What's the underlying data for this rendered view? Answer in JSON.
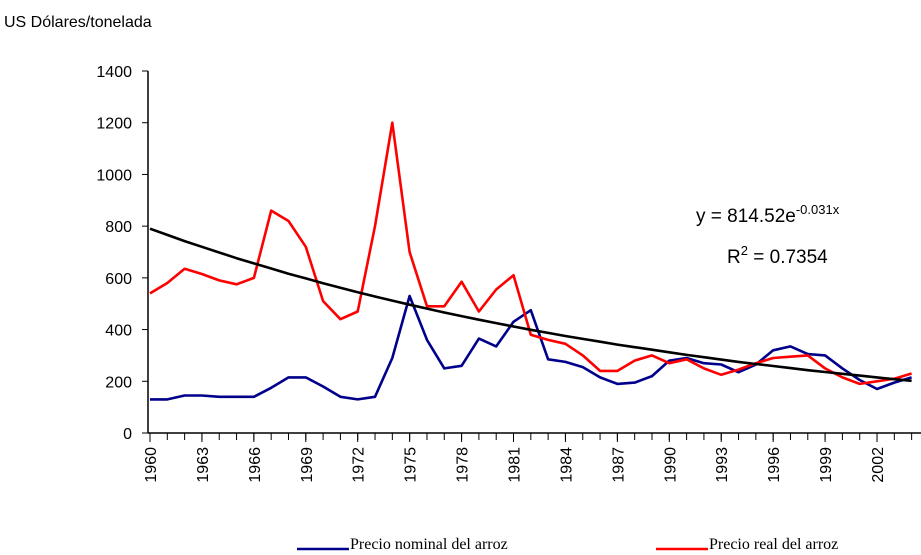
{
  "chart_data": {
    "type": "line",
    "y_axis_label": "US Dólares/tonelada",
    "x": [
      1960,
      1961,
      1962,
      1963,
      1964,
      1965,
      1966,
      1967,
      1968,
      1969,
      1970,
      1971,
      1972,
      1973,
      1974,
      1975,
      1976,
      1977,
      1978,
      1979,
      1980,
      1981,
      1982,
      1983,
      1984,
      1985,
      1986,
      1987,
      1988,
      1989,
      1990,
      1991,
      1992,
      1993,
      1994,
      1995,
      1996,
      1997,
      1998,
      1999,
      2000,
      2001,
      2002,
      2003,
      2004
    ],
    "xlim": [
      1960,
      2004.5
    ],
    "xticks": [
      1960,
      1963,
      1966,
      1969,
      1972,
      1975,
      1978,
      1981,
      1984,
      1987,
      1990,
      1993,
      1996,
      1999,
      2002
    ],
    "ylim": [
      0,
      1400
    ],
    "yticks": [
      0,
      200,
      400,
      600,
      800,
      1000,
      1200,
      1400
    ],
    "legend": "bottom",
    "series": [
      {
        "name": "Precio nominal del arroz",
        "color": "#00008b",
        "values": [
          130,
          130,
          145,
          145,
          140,
          140,
          140,
          175,
          215,
          215,
          180,
          140,
          130,
          140,
          290,
          530,
          360,
          250,
          260,
          365,
          335,
          430,
          475,
          285,
          275,
          255,
          215,
          190,
          195,
          220,
          280,
          290,
          270,
          265,
          235,
          265,
          320,
          335,
          305,
          300,
          250,
          205,
          170,
          195,
          215
        ]
      },
      {
        "name": "Precio real del arroz",
        "color": "#ff0000",
        "values": [
          540,
          580,
          635,
          615,
          590,
          575,
          600,
          860,
          820,
          720,
          510,
          440,
          470,
          800,
          1200,
          700,
          490,
          490,
          585,
          470,
          555,
          610,
          380,
          360,
          345,
          300,
          240,
          240,
          280,
          300,
          270,
          285,
          250,
          225,
          245,
          270,
          290,
          295,
          300,
          250,
          215,
          190,
          200,
          210,
          230
        ]
      }
    ],
    "trendline": {
      "color": "#000000",
      "values": [
        790,
        766,
        742,
        720,
        698,
        676,
        656,
        636,
        616,
        598,
        579,
        562,
        544,
        528,
        512,
        496,
        481,
        466,
        452,
        438,
        425,
        412,
        399,
        387,
        375,
        364,
        353,
        342,
        332,
        322,
        312,
        302,
        293,
        284,
        275,
        267,
        259,
        251,
        243,
        236,
        229,
        222,
        215,
        208,
        202
      ],
      "equation": {
        "base": "y = 814.52e",
        "exponent": "-0.031x"
      },
      "r_squared": {
        "base": "R",
        "exponent": "2",
        "rest": " = 0.7354"
      }
    }
  }
}
